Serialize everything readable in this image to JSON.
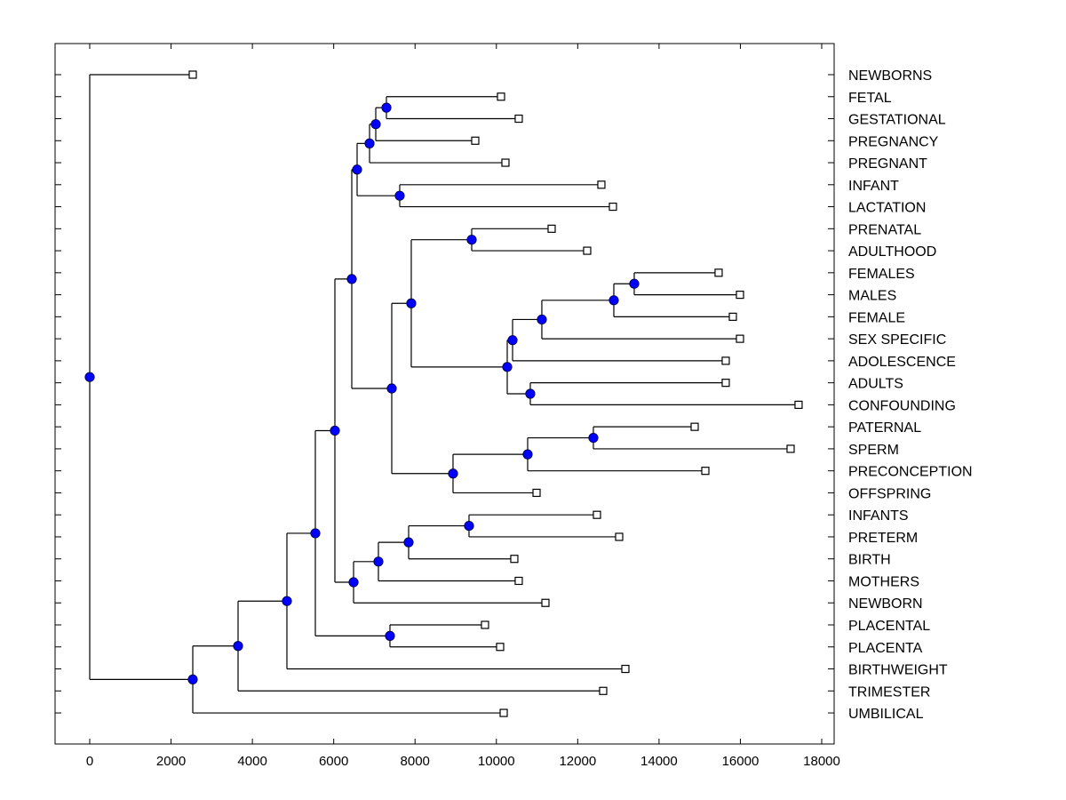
{
  "chart_data": {
    "type": "dendrogram",
    "title": "",
    "xlabel": "",
    "ylabel": "",
    "xlim": [
      -800,
      18300
    ],
    "x_ticks": [
      0,
      2000,
      4000,
      6000,
      8000,
      10000,
      12000,
      14000,
      16000,
      18000
    ],
    "x_tick_labels": [
      "0",
      "2000",
      "4000",
      "6000",
      "8000",
      "10000",
      "12000",
      "14000",
      "16000",
      "18000"
    ],
    "grid": false,
    "node_color": "#0000ff",
    "leaf_marker": "open-square",
    "leaves": [
      {
        "label": "NEWBORNS",
        "x": 2534
      },
      {
        "label": "FETAL",
        "x": 10114
      },
      {
        "label": "GESTATIONAL",
        "x": 10550
      },
      {
        "label": "PREGNANCY",
        "x": 9480
      },
      {
        "label": "PREGNANT",
        "x": 10223
      },
      {
        "label": "INFANT",
        "x": 12582
      },
      {
        "label": "LACTATION",
        "x": 12866
      },
      {
        "label": "PRENATAL",
        "x": 11359
      },
      {
        "label": "ADULTHOOD",
        "x": 12232
      },
      {
        "label": "FEMALES",
        "x": 15465
      },
      {
        "label": "MALES",
        "x": 15990
      },
      {
        "label": "FEMALE",
        "x": 15815
      },
      {
        "label": "SEX SPECIFIC",
        "x": 15990
      },
      {
        "label": "ADOLESCENCE",
        "x": 15640
      },
      {
        "label": "ADULTS",
        "x": 15640
      },
      {
        "label": "CONFOUNDING",
        "x": 17431
      },
      {
        "label": "PATERNAL",
        "x": 14876
      },
      {
        "label": "SPERM",
        "x": 17235
      },
      {
        "label": "PRECONCEPTION",
        "x": 15138
      },
      {
        "label": "OFFSPRING",
        "x": 10988
      },
      {
        "label": "INFANTS",
        "x": 12473
      },
      {
        "label": "PRETERM",
        "x": 13019
      },
      {
        "label": "BIRTH",
        "x": 10441
      },
      {
        "label": "MOTHERS",
        "x": 10550
      },
      {
        "label": "NEWBORN",
        "x": 11206
      },
      {
        "label": "PLACENTAL",
        "x": 9720
      },
      {
        "label": "PLACENTA",
        "x": 10092
      },
      {
        "label": "BIRTHWEIGHT",
        "x": 13172
      },
      {
        "label": "TRIMESTER",
        "x": 12626
      },
      {
        "label": "UMBILICAL",
        "x": 10180
      }
    ],
    "nodes": [
      {
        "id": "n1",
        "x": 7296,
        "children": [
          "L1",
          "L2"
        ]
      },
      {
        "id": "n2",
        "x": 7034,
        "children": [
          "n1",
          "L3"
        ]
      },
      {
        "id": "n3",
        "x": 6881,
        "children": [
          "n2",
          "L4"
        ]
      },
      {
        "id": "n4",
        "x": 7623,
        "children": [
          "L5",
          "L6"
        ]
      },
      {
        "id": "n5",
        "x": 6575,
        "children": [
          "n3",
          "n4"
        ]
      },
      {
        "id": "n6",
        "x": 9393,
        "children": [
          "L7",
          "L8"
        ]
      },
      {
        "id": "n7",
        "x": 13390,
        "children": [
          "L9",
          "L10"
        ]
      },
      {
        "id": "n8",
        "x": 12888,
        "children": [
          "n7",
          "L11"
        ]
      },
      {
        "id": "n9",
        "x": 11118,
        "children": [
          "n8",
          "L12"
        ]
      },
      {
        "id": "n10",
        "x": 10398,
        "children": [
          "n9",
          "L13"
        ]
      },
      {
        "id": "n11",
        "x": 10834,
        "children": [
          "L14",
          "L15"
        ]
      },
      {
        "id": "n12",
        "x": 10267,
        "children": [
          "n10",
          "n11"
        ]
      },
      {
        "id": "n13",
        "x": 7907,
        "children": [
          "n6",
          "n12"
        ]
      },
      {
        "id": "n14",
        "x": 12385,
        "children": [
          "L16",
          "L17"
        ]
      },
      {
        "id": "n15",
        "x": 10769,
        "children": [
          "n14",
          "L18"
        ]
      },
      {
        "id": "n16",
        "x": 8934,
        "children": [
          "n15",
          "L19"
        ]
      },
      {
        "id": "n17",
        "x": 7427,
        "children": [
          "n13",
          "n16"
        ]
      },
      {
        "id": "n18",
        "x": 6444,
        "children": [
          "n5",
          "n17"
        ]
      },
      {
        "id": "n19",
        "x": 9327,
        "children": [
          "L20",
          "L21"
        ]
      },
      {
        "id": "n20",
        "x": 7842,
        "children": [
          "n19",
          "L22"
        ]
      },
      {
        "id": "n21",
        "x": 7099,
        "children": [
          "n20",
          "L23"
        ]
      },
      {
        "id": "n22",
        "x": 6488,
        "children": [
          "n21",
          "L24"
        ]
      },
      {
        "id": "n23",
        "x": 6029,
        "children": [
          "n18",
          "n22"
        ]
      },
      {
        "id": "n24",
        "x": 7383,
        "children": [
          "L25",
          "L26"
        ]
      },
      {
        "id": "n25",
        "x": 5548,
        "children": [
          "n23",
          "n24"
        ]
      },
      {
        "id": "n26",
        "x": 4849,
        "children": [
          "n25",
          "L27"
        ]
      },
      {
        "id": "n27",
        "x": 3648,
        "children": [
          "n26",
          "L28"
        ]
      },
      {
        "id": "n28",
        "x": 2534,
        "children": [
          "n27",
          "L29"
        ]
      },
      {
        "id": "n29",
        "x": 0,
        "children": [
          "L0",
          "n28"
        ]
      }
    ]
  }
}
